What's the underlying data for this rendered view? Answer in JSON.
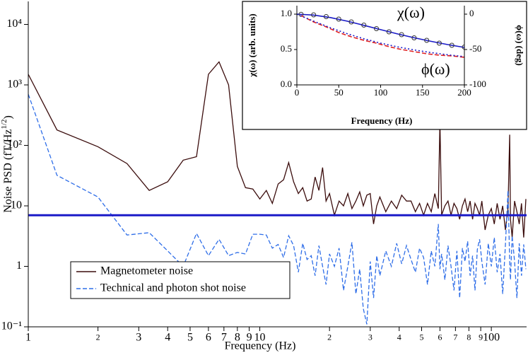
{
  "chart_data": [
    {
      "type": "line",
      "log_x": true,
      "log_y": true,
      "x_label": "Frequency (Hz)",
      "y_label": "Noise PSD (fT/Hz",
      "y_label_sup": "1/2",
      "y_label_end": ")",
      "xlim": [
        1,
        142
      ],
      "ylim": [
        0.1,
        24000
      ],
      "xticks": [
        1,
        {
          "value": 2,
          "label": "2"
        },
        3,
        4,
        5,
        6,
        7,
        8,
        9,
        10,
        {
          "value": 20,
          "label": "2"
        },
        {
          "value": 30,
          "label": "3"
        },
        {
          "value": 40,
          "label": "4"
        },
        {
          "value": 50,
          "label": "5"
        },
        {
          "value": 60,
          "label": "6"
        },
        {
          "value": 70,
          "label": "7"
        },
        {
          "value": 80,
          "label": "8"
        },
        {
          "value": 90,
          "label": "9"
        },
        100
      ],
      "yticks": [
        {
          "value": 0.1,
          "label": "10⁻¹"
        },
        1,
        10,
        {
          "value": 100,
          "label": "10²"
        },
        {
          "value": 1000,
          "label": "10³"
        },
        {
          "value": 10000,
          "label": "10⁴"
        }
      ],
      "legend": "lower left",
      "x": [
        1,
        1.33,
        2,
        2.67,
        3.33,
        4,
        4.67,
        5.33,
        6,
        6.67,
        7.33,
        8,
        8.67,
        9.33,
        10,
        10.67,
        11.33,
        12,
        12.67,
        13.33,
        14,
        14.67,
        15.33,
        16,
        16.67,
        17.33,
        18,
        18.67,
        19.33,
        20,
        21,
        22,
        23,
        24,
        25,
        26,
        27,
        28,
        29,
        30,
        31,
        32,
        33,
        35,
        37,
        39,
        41,
        43,
        45,
        47,
        49,
        51,
        53,
        55,
        57,
        59,
        60,
        61,
        63,
        65,
        67,
        69,
        71,
        73,
        75,
        77,
        79,
        81,
        83,
        85,
        87,
        89,
        91,
        94,
        97,
        100,
        103,
        106,
        109,
        112,
        115,
        118,
        120,
        121,
        123,
        126,
        129,
        132,
        135,
        138,
        141
      ],
      "series": [
        {
          "name": "Magnetometer noise",
          "color": "#3b0d0d",
          "style": "solid",
          "values": [
            1500,
            180,
            95,
            50,
            18,
            25,
            57,
            65,
            1500,
            2400,
            1000,
            45,
            20,
            19,
            13,
            18,
            11,
            23,
            27,
            52,
            25,
            16,
            20,
            12,
            13,
            30,
            18,
            43,
            12,
            16,
            7,
            12,
            10,
            16,
            9,
            12,
            17,
            10,
            15,
            16,
            5,
            10,
            14,
            8,
            12,
            9,
            15,
            12,
            12,
            8,
            11,
            7,
            11,
            8,
            16,
            9,
            250,
            7,
            10,
            12,
            7,
            11,
            9,
            6,
            10,
            13,
            8,
            12,
            6,
            11,
            9,
            7,
            12,
            4,
            7,
            9,
            5,
            11,
            6,
            10,
            4,
            9,
            150,
            6,
            3,
            12,
            8,
            5,
            11,
            3,
            13
          ]
        },
        {
          "name": "Technical and photon shot noise",
          "color": "#2f6ee8",
          "style": "dashed",
          "values": [
            700,
            32,
            14,
            3.3,
            3.6,
            1.8,
            1.0,
            3.5,
            1.5,
            2.8,
            1.5,
            1.7,
            1.6,
            3.4,
            3.4,
            3.3,
            2.0,
            2.3,
            1.4,
            3.2,
            2.2,
            0.8,
            2.4,
            1.3,
            1.5,
            0.7,
            2.2,
            1.0,
            0.5,
            1.6,
            1.0,
            2.0,
            0.4,
            1.0,
            2.5,
            0.35,
            0.9,
            0.2,
            0.11,
            1.2,
            0.3,
            1.5,
            0.7,
            1.8,
            1.0,
            2.4,
            1.1,
            2.2,
            1.3,
            0.8,
            2.0,
            1.4,
            0.5,
            1.8,
            1.0,
            5,
            0.9,
            1.6,
            0.6,
            2.2,
            1.0,
            0.4,
            1.8,
            0.3,
            2.0,
            1.2,
            2.6,
            0.7,
            1.5,
            0.4,
            1.9,
            2.8,
            1.2,
            0.5,
            2.4,
            1.0,
            3.0,
            0.8,
            1.6,
            0.35,
            2.2,
            18,
            1.2,
            0.6,
            3.2,
            1.2,
            0.3,
            2.4,
            0.7,
            2.3,
            0.9
          ]
        }
      ],
      "hline": {
        "value": 7,
        "color": "#1a1ac8"
      }
    },
    {
      "type": "line",
      "x_label": "Frequency (Hz)",
      "y_label": "χ(ω) (arb. units)",
      "y2_label": "ϕ(ω) (deg)",
      "annotations": [
        "χ(ω)",
        "ϕ(ω)"
      ],
      "xlim": [
        0,
        200
      ],
      "ylim": [
        0,
        1.12
      ],
      "y2lim": [
        -100,
        12
      ],
      "xticks": [
        0,
        50,
        100,
        150,
        200
      ],
      "yticks": [
        {
          "value": 0,
          "label": "0.0"
        },
        0.5,
        {
          "value": 1,
          "label": "1.0"
        }
      ],
      "y2ticks": [
        -100,
        -50,
        0
      ],
      "series": [
        {
          "color": "#1a1ac8",
          "style": "solid",
          "x": [
            0,
            20,
            40,
            60,
            80,
            100,
            120,
            140,
            160,
            180,
            200
          ],
          "values": [
            1,
            0.987,
            0.952,
            0.901,
            0.842,
            0.781,
            0.721,
            0.666,
            0.616,
            0.57,
            0.53
          ]
        },
        {
          "color": "#333333",
          "style": "markers",
          "x": [
            5,
            20,
            35,
            50,
            65,
            80,
            95,
            110,
            125,
            140,
            155,
            170,
            185,
            200
          ],
          "values": [
            0.998,
            0.99,
            0.965,
            0.93,
            0.89,
            0.845,
            0.795,
            0.75,
            0.71,
            0.665,
            0.63,
            0.59,
            0.56,
            0.535
          ]
        },
        {
          "color": "#e02020",
          "style": "dashed",
          "axis": "y2",
          "x": [
            5,
            20,
            35,
            50,
            65,
            80,
            95,
            110,
            125,
            140,
            155,
            170,
            185,
            200
          ],
          "values": [
            -2,
            -11,
            -18,
            -26,
            -32,
            -37,
            -41,
            -46,
            -50,
            -53,
            -56,
            -58,
            -59,
            -61
          ]
        },
        {
          "color": "#1a1ac8",
          "style": "dotted",
          "axis": "y2",
          "x": [
            0,
            20,
            40,
            60,
            80,
            100,
            120,
            140,
            160,
            180,
            200
          ],
          "values": [
            0,
            -9.9,
            -19.2,
            -27.6,
            -34.8,
            -41,
            -46.2,
            -50.6,
            -54.3,
            -57.4,
            -60.1
          ]
        }
      ]
    }
  ]
}
